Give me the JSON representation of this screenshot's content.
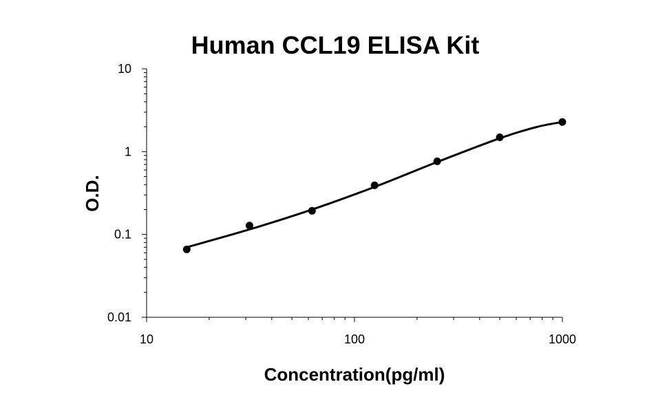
{
  "chart_data": {
    "type": "scatter",
    "title": "Human CCL19 ELISA Kit",
    "xlabel": "Concentration(pg/ml)",
    "ylabel": "O.D.",
    "x_scale": "log",
    "y_scale": "log",
    "xlim": [
      10,
      1000
    ],
    "ylim": [
      0.01,
      10
    ],
    "x_ticks": [
      "10",
      "100",
      "1000"
    ],
    "y_ticks": [
      "0.01",
      "0.1",
      "1",
      "10"
    ],
    "grid": false,
    "legend": "none",
    "series": [
      {
        "points": [
          {
            "x": 15.6,
            "y": 0.066
          },
          {
            "x": 31.25,
            "y": 0.128
          },
          {
            "x": 62.5,
            "y": 0.193
          },
          {
            "x": 125,
            "y": 0.392
          },
          {
            "x": 250,
            "y": 0.765
          },
          {
            "x": 500,
            "y": 1.49
          },
          {
            "x": 1000,
            "y": 2.28
          }
        ],
        "fit_curve": [
          {
            "x": 15.6,
            "y": 0.07
          },
          {
            "x": 31.25,
            "y": 0.115
          },
          {
            "x": 62.5,
            "y": 0.2
          },
          {
            "x": 125,
            "y": 0.375
          },
          {
            "x": 250,
            "y": 0.75
          },
          {
            "x": 500,
            "y": 1.45
          },
          {
            "x": 750,
            "y": 1.98
          },
          {
            "x": 1000,
            "y": 2.28
          }
        ],
        "color": "#000000"
      }
    ]
  }
}
